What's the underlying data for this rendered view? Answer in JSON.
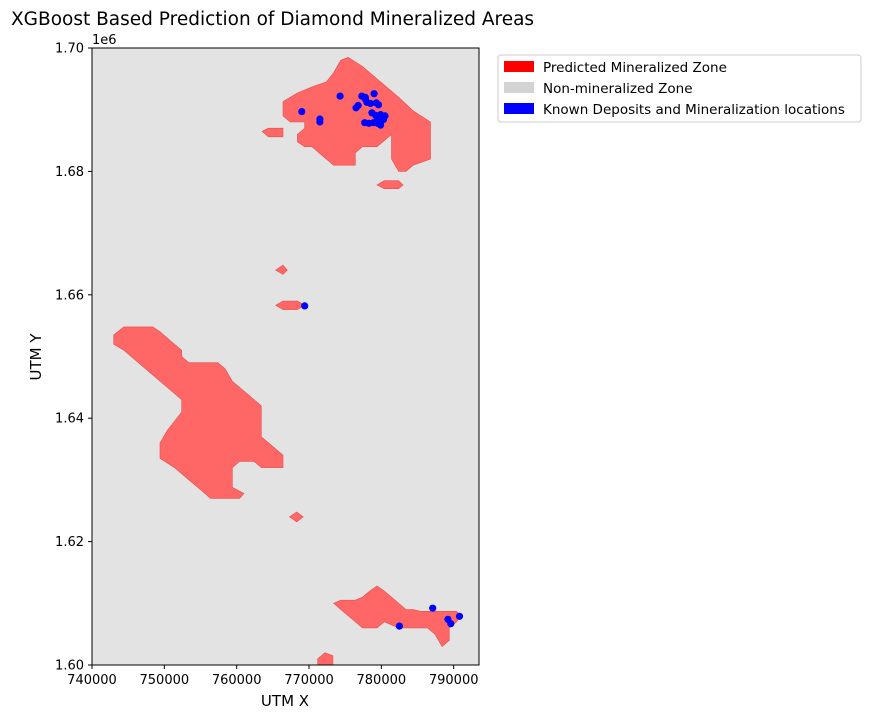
{
  "chart_data": {
    "type": "map",
    "title": "XGBoost Based Prediction of Diamond Mineralized Areas",
    "xlabel": "UTM X",
    "ylabel": "UTM Y",
    "y_offset_label": "1e6",
    "xlim": [
      740000,
      793500
    ],
    "ylim": [
      1600000,
      1700000
    ],
    "x_ticks": [
      740000,
      750000,
      760000,
      770000,
      780000,
      790000
    ],
    "x_tick_labels": [
      "740000",
      "750000",
      "760000",
      "770000",
      "780000",
      "790000"
    ],
    "y_ticks": [
      1600000,
      1620000,
      1640000,
      1660000,
      1680000,
      1700000
    ],
    "y_tick_labels": [
      "1.60",
      "1.62",
      "1.64",
      "1.66",
      "1.68",
      "1.70"
    ],
    "legend_position": "outside-upper-right",
    "legend": [
      {
        "label": "Predicted Mineralized Zone",
        "color": "#ff0000"
      },
      {
        "label": "Non-mineralized Zone",
        "color": "#d3d3d3"
      },
      {
        "label": "Known Deposits and Mineralization locations",
        "color": "#0000ff"
      }
    ],
    "background_color": "#e3e3e3",
    "zone_color": "#ff6666",
    "point_color": "#0000ff",
    "mineralized_zones": [
      {
        "name": "north-zone",
        "polygon": [
          [
            766400,
            1691300
          ],
          [
            766400,
            1689000
          ],
          [
            767400,
            1688000
          ],
          [
            769400,
            1688000
          ],
          [
            769400,
            1687000
          ],
          [
            768400,
            1686000
          ],
          [
            768400,
            1684800
          ],
          [
            769400,
            1684000
          ],
          [
            770400,
            1684000
          ],
          [
            771400,
            1683000
          ],
          [
            772400,
            1682000
          ],
          [
            773400,
            1681000
          ],
          [
            776400,
            1681000
          ],
          [
            776400,
            1683000
          ],
          [
            777400,
            1684000
          ],
          [
            779400,
            1684000
          ],
          [
            780400,
            1685000
          ],
          [
            781400,
            1686000
          ],
          [
            781400,
            1682000
          ],
          [
            782400,
            1680000
          ],
          [
            783400,
            1680000
          ],
          [
            784400,
            1681000
          ],
          [
            786800,
            1682000
          ],
          [
            786800,
            1688000
          ],
          [
            784400,
            1689800
          ],
          [
            782400,
            1692000
          ],
          [
            780400,
            1694000
          ],
          [
            777400,
            1697000
          ],
          [
            775400,
            1698500
          ],
          [
            774400,
            1698000
          ],
          [
            773400,
            1696000
          ],
          [
            772400,
            1694500
          ],
          [
            770400,
            1693700
          ],
          [
            768400,
            1692700
          ]
        ]
      },
      {
        "name": "north-west-islet",
        "polygon": [
          [
            763500,
            1686500
          ],
          [
            764400,
            1685600
          ],
          [
            766400,
            1685600
          ],
          [
            766400,
            1687000
          ],
          [
            764400,
            1687000
          ]
        ]
      },
      {
        "name": "north-east-islet",
        "polygon": [
          [
            779400,
            1677800
          ],
          [
            780400,
            1677200
          ],
          [
            782400,
            1677200
          ],
          [
            783000,
            1677800
          ],
          [
            782400,
            1678500
          ],
          [
            780400,
            1678500
          ]
        ]
      },
      {
        "name": "central-dot",
        "polygon": [
          [
            765400,
            1664000
          ],
          [
            766400,
            1663300
          ],
          [
            767000,
            1664000
          ],
          [
            766400,
            1664800
          ]
        ]
      },
      {
        "name": "central-patch",
        "polygon": [
          [
            765400,
            1658300
          ],
          [
            766400,
            1657600
          ],
          [
            768400,
            1657600
          ],
          [
            769400,
            1658300
          ],
          [
            768400,
            1659000
          ],
          [
            766400,
            1659000
          ]
        ]
      },
      {
        "name": "west-zone",
        "polygon": [
          [
            743000,
            1653500
          ],
          [
            743000,
            1652000
          ],
          [
            744400,
            1651000
          ],
          [
            746400,
            1649000
          ],
          [
            748400,
            1647000
          ],
          [
            750400,
            1645000
          ],
          [
            752400,
            1643000
          ],
          [
            752400,
            1641000
          ],
          [
            750400,
            1638000
          ],
          [
            749400,
            1636000
          ],
          [
            749400,
            1633500
          ],
          [
            751400,
            1632000
          ],
          [
            753400,
            1630000
          ],
          [
            755400,
            1628000
          ],
          [
            756400,
            1627000
          ],
          [
            760400,
            1627000
          ],
          [
            761000,
            1627800
          ],
          [
            759400,
            1628800
          ],
          [
            759400,
            1632000
          ],
          [
            760400,
            1633000
          ],
          [
            762400,
            1633000
          ],
          [
            763400,
            1632000
          ],
          [
            766400,
            1632000
          ],
          [
            766400,
            1634000
          ],
          [
            764400,
            1636000
          ],
          [
            763400,
            1637000
          ],
          [
            763400,
            1642000
          ],
          [
            761400,
            1644000
          ],
          [
            759400,
            1646000
          ],
          [
            758400,
            1648000
          ],
          [
            757400,
            1649000
          ],
          [
            753400,
            1649000
          ],
          [
            752400,
            1650000
          ],
          [
            752400,
            1651000
          ],
          [
            751400,
            1652000
          ],
          [
            750400,
            1653000
          ],
          [
            749400,
            1654000
          ],
          [
            748400,
            1654800
          ],
          [
            744400,
            1654800
          ]
        ]
      },
      {
        "name": "south-islet",
        "polygon": [
          [
            767300,
            1624000
          ],
          [
            768300,
            1623200
          ],
          [
            769200,
            1624000
          ],
          [
            768300,
            1624800
          ]
        ]
      },
      {
        "name": "south-east-zone",
        "polygon": [
          [
            773400,
            1610000
          ],
          [
            774400,
            1609000
          ],
          [
            776400,
            1607000
          ],
          [
            777400,
            1606000
          ],
          [
            779400,
            1606000
          ],
          [
            780400,
            1607000
          ],
          [
            782400,
            1606000
          ],
          [
            786400,
            1606000
          ],
          [
            787400,
            1605000
          ],
          [
            788400,
            1603000
          ],
          [
            789400,
            1604000
          ],
          [
            789400,
            1606000
          ],
          [
            790400,
            1607000
          ],
          [
            791000,
            1608000
          ],
          [
            790400,
            1608700
          ],
          [
            785400,
            1608700
          ],
          [
            784400,
            1609000
          ],
          [
            783400,
            1609000
          ],
          [
            782400,
            1610000
          ],
          [
            781400,
            1611000
          ],
          [
            780400,
            1612000
          ],
          [
            779400,
            1612800
          ],
          [
            778400,
            1612000
          ],
          [
            777400,
            1611000
          ],
          [
            776400,
            1610500
          ],
          [
            774400,
            1610500
          ]
        ]
      },
      {
        "name": "bottom-edge-patch",
        "polygon": [
          [
            771200,
            1600000
          ],
          [
            771200,
            1601000
          ],
          [
            772200,
            1602000
          ],
          [
            773300,
            1601500
          ],
          [
            773300,
            1600000
          ]
        ]
      }
    ],
    "known_deposits": [
      {
        "x": 769000,
        "y": 1689700
      },
      {
        "x": 771500,
        "y": 1688500
      },
      {
        "x": 771500,
        "y": 1688000
      },
      {
        "x": 774300,
        "y": 1692200
      },
      {
        "x": 776500,
        "y": 1690300
      },
      {
        "x": 776800,
        "y": 1690700
      },
      {
        "x": 777300,
        "y": 1692200
      },
      {
        "x": 777800,
        "y": 1691700
      },
      {
        "x": 777800,
        "y": 1692000
      },
      {
        "x": 778000,
        "y": 1691200
      },
      {
        "x": 778500,
        "y": 1691000
      },
      {
        "x": 779000,
        "y": 1692600
      },
      {
        "x": 779300,
        "y": 1691100
      },
      {
        "x": 779600,
        "y": 1690800
      },
      {
        "x": 778700,
        "y": 1689500
      },
      {
        "x": 779200,
        "y": 1689100
      },
      {
        "x": 779400,
        "y": 1688800
      },
      {
        "x": 779900,
        "y": 1689200
      },
      {
        "x": 780200,
        "y": 1688900
      },
      {
        "x": 780300,
        "y": 1688400
      },
      {
        "x": 779700,
        "y": 1688300
      },
      {
        "x": 779500,
        "y": 1687800
      },
      {
        "x": 778900,
        "y": 1687900
      },
      {
        "x": 778300,
        "y": 1687800
      },
      {
        "x": 777700,
        "y": 1687900
      },
      {
        "x": 779900,
        "y": 1687500
      },
      {
        "x": 780500,
        "y": 1689000
      },
      {
        "x": 769400,
        "y": 1658200
      },
      {
        "x": 782500,
        "y": 1606300
      },
      {
        "x": 787100,
        "y": 1609200
      },
      {
        "x": 789200,
        "y": 1607400
      },
      {
        "x": 789600,
        "y": 1606700
      },
      {
        "x": 790800,
        "y": 1607900
      }
    ]
  }
}
